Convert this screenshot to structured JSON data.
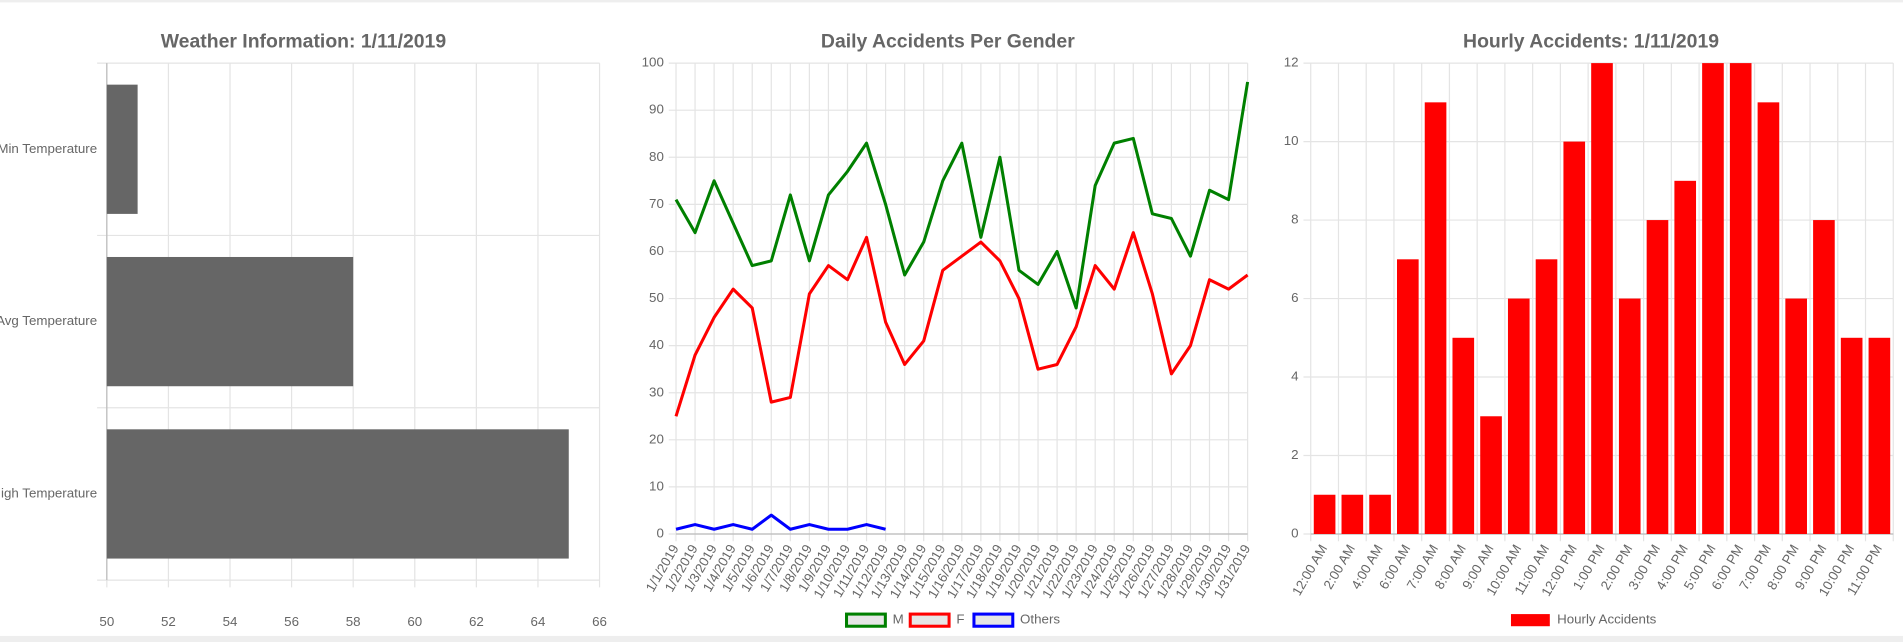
{
  "chart_data": [
    {
      "type": "bar",
      "horizontal": true,
      "title": "Weather Information: 1/11/2019",
      "categories": [
        "Min Temperature",
        "Avg Temperature",
        "High Temperature"
      ],
      "values": [
        51,
        58,
        65
      ],
      "color": "#666666",
      "xlim": [
        50,
        66
      ],
      "xticks": [
        50,
        52,
        54,
        56,
        58,
        60,
        62,
        64,
        66
      ],
      "grid": true
    },
    {
      "type": "line",
      "title": "Daily Accidents Per Gender",
      "categories": [
        "1/1/2019",
        "1/2/2019",
        "1/3/2019",
        "1/4/2019",
        "1/5/2019",
        "1/6/2019",
        "1/7/2019",
        "1/8/2019",
        "1/9/2019",
        "1/10/2019",
        "1/11/2019",
        "1/12/2019",
        "1/13/2019",
        "1/14/2019",
        "1/15/2019",
        "1/16/2019",
        "1/17/2019",
        "1/18/2019",
        "1/19/2019",
        "1/20/2019",
        "1/21/2019",
        "1/22/2019",
        "1/23/2019",
        "1/24/2019",
        "1/25/2019",
        "1/26/2019",
        "1/27/2019",
        "1/28/2019",
        "1/29/2019",
        "1/30/2019",
        "1/31/2019"
      ],
      "series": [
        {
          "name": "M",
          "color": "#008000",
          "values": [
            71,
            64,
            75,
            66,
            57,
            58,
            72,
            58,
            72,
            77,
            83,
            70,
            55,
            62,
            75,
            83,
            63,
            80,
            56,
            53,
            60,
            48,
            74,
            83,
            84,
            68,
            67,
            59,
            73,
            71,
            96
          ]
        },
        {
          "name": "F",
          "color": "#ff0000",
          "values": [
            25,
            38,
            46,
            52,
            48,
            28,
            29,
            51,
            57,
            54,
            63,
            45,
            36,
            41,
            56,
            59,
            62,
            58,
            50,
            35,
            36,
            44,
            57,
            52,
            64,
            51,
            34,
            40,
            54,
            52,
            55
          ]
        },
        {
          "name": "Others",
          "color": "#0000ff",
          "values": [
            1,
            2,
            1,
            2,
            1,
            4,
            1,
            2,
            1,
            1,
            2,
            1,
            null,
            null,
            null,
            null,
            null,
            null,
            null,
            null,
            null,
            null,
            null,
            null,
            null,
            null,
            null,
            null,
            null,
            null,
            null
          ]
        }
      ],
      "ylim": [
        0,
        100
      ],
      "yticks": [
        0,
        10,
        20,
        30,
        40,
        50,
        60,
        70,
        80,
        90,
        100
      ],
      "grid": true,
      "legend": "bottom"
    },
    {
      "type": "bar",
      "title": "Hourly Accidents: 1/11/2019",
      "categories": [
        "12:00 AM",
        "2:00 AM",
        "4:00 AM",
        "6:00 AM",
        "7:00 AM",
        "8:00 AM",
        "9:00 AM",
        "10:00 AM",
        "11:00 AM",
        "12:00 PM",
        "1:00 PM",
        "2:00 PM",
        "3:00 PM",
        "4:00 PM",
        "5:00 PM",
        "6:00 PM",
        "7:00 PM",
        "8:00 PM",
        "9:00 PM",
        "10:00 PM",
        "11:00 PM"
      ],
      "series": [
        {
          "name": "Hourly Accidents",
          "color": "#ff0000",
          "values": [
            1,
            1,
            1,
            7,
            11,
            5,
            3,
            6,
            7,
            10,
            12,
            6,
            8,
            9,
            12,
            12,
            11,
            6,
            8,
            5,
            5
          ]
        }
      ],
      "ylim": [
        0,
        12
      ],
      "yticks": [
        0,
        2,
        4,
        6,
        8,
        10,
        12
      ],
      "grid": true,
      "legend": "bottom"
    }
  ]
}
